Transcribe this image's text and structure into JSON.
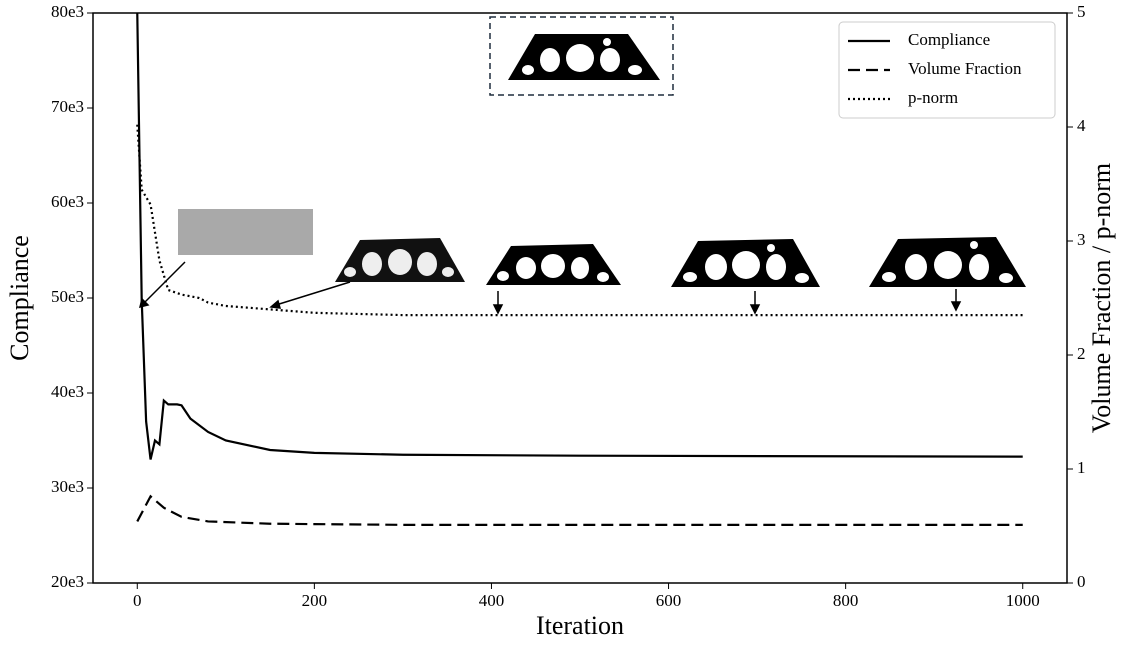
{
  "chart_data": {
    "type": "line",
    "x_label": "Iteration",
    "y_label": "Compliance",
    "y2_label": "Volume Fraction / p-norm",
    "xlim": [
      -50,
      1050
    ],
    "xticks": [
      0,
      200,
      400,
      600,
      800,
      1000
    ],
    "ylim": [
      20000,
      80000
    ],
    "yticks": [
      {
        "value": 20000,
        "label": "20e3"
      },
      {
        "value": 30000,
        "label": "30e3"
      },
      {
        "value": 40000,
        "label": "40e3"
      },
      {
        "value": 50000,
        "label": "50e3"
      },
      {
        "value": 60000,
        "label": "60e3"
      },
      {
        "value": 70000,
        "label": "70e3"
      },
      {
        "value": 80000,
        "label": "80e3"
      }
    ],
    "y2lim": [
      0,
      5
    ],
    "y2ticks": [
      0,
      1,
      2,
      3,
      4,
      5
    ],
    "legend": "upper right",
    "series": [
      {
        "name": "Compliance",
        "color": "#000000",
        "dash": "solid",
        "axis": "y",
        "x": [
          0,
          5,
          10,
          15,
          20,
          25,
          30,
          35,
          45,
          50,
          60,
          80,
          100,
          150,
          200,
          300,
          500,
          1000
        ],
        "values": [
          80000,
          49800,
          37000,
          33000,
          35000,
          34600,
          39200,
          38800,
          38800,
          38700,
          37300,
          35900,
          35000,
          34000,
          33700,
          33500,
          33400,
          33300
        ]
      },
      {
        "name": "Volume Fraction",
        "color": "#000000",
        "dash": "dashed",
        "axis": "y2",
        "x": [
          0,
          15,
          30,
          50,
          80,
          150,
          300,
          1000
        ],
        "values": [
          0.54,
          0.76,
          0.66,
          0.58,
          0.54,
          0.52,
          0.51,
          0.51
        ]
      },
      {
        "name": "p-norm",
        "color": "#000000",
        "dash": "dotted",
        "axis": "y2",
        "x": [
          0,
          5,
          15,
          25,
          35,
          50,
          70,
          80,
          100,
          150,
          200,
          300,
          1000
        ],
        "values": [
          4.02,
          3.45,
          3.32,
          2.83,
          2.57,
          2.53,
          2.5,
          2.46,
          2.43,
          2.4,
          2.37,
          2.35,
          2.35
        ]
      }
    ]
  }
}
